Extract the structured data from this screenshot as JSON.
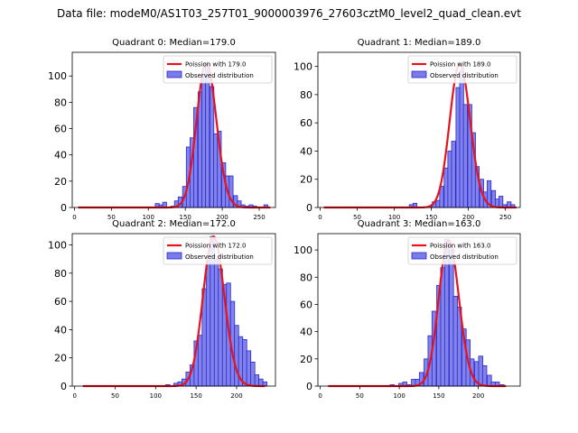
{
  "figure": {
    "suptitle": "Data file: modeM0/AS1T03_257T01_9000003976_27603cztM0_level2_quad_clean.evt"
  },
  "colors": {
    "bar_fill": "#7b7bea",
    "bar_edge": "#2a2acc",
    "poisson_line": "#e8121c"
  },
  "chart_data": [
    {
      "type": "bar",
      "title": "Quadrant 0: Median=179.0",
      "median": 179.0,
      "xlim": [
        -3,
        272
      ],
      "ylim": [
        0,
        118
      ],
      "xticks": [
        0,
        50,
        100,
        150,
        200,
        250
      ],
      "yticks": [
        0,
        20,
        40,
        60,
        80,
        100
      ],
      "legend": {
        "placement": "top-right",
        "poisson_label": "Poission with 179.0",
        "observed_label": "Observed distribution"
      },
      "bin_width": 5.3,
      "bins": [
        [
          112,
          3
        ],
        [
          117,
          2
        ],
        [
          122,
          4
        ],
        [
          133,
          1
        ],
        [
          138,
          5
        ],
        [
          143,
          8
        ],
        [
          149,
          16
        ],
        [
          154,
          46
        ],
        [
          159,
          53
        ],
        [
          164,
          76
        ],
        [
          170,
          88
        ],
        [
          175,
          100
        ],
        [
          180,
          109
        ],
        [
          186,
          92
        ],
        [
          191,
          56
        ],
        [
          196,
          58
        ],
        [
          202,
          34
        ],
        [
          207,
          24
        ],
        [
          212,
          24
        ],
        [
          218,
          9
        ],
        [
          223,
          5
        ],
        [
          228,
          2
        ],
        [
          233,
          1
        ],
        [
          239,
          2
        ],
        [
          244,
          1
        ],
        [
          259,
          2
        ]
      ],
      "poisson": {
        "mu": 179.0,
        "peak": 110,
        "x_range": [
          5,
          265
        ]
      }
    },
    {
      "type": "bar",
      "title": "Quadrant 1: Median=189.0",
      "median": 189.0,
      "xlim": [
        -3,
        270
      ],
      "ylim": [
        0,
        110
      ],
      "xticks": [
        0,
        50,
        100,
        150,
        200,
        250
      ],
      "yticks": [
        0,
        20,
        40,
        60,
        80,
        100
      ],
      "legend": {
        "placement": "top-right",
        "poisson_label": "Poission with 189.0",
        "observed_label": "Observed distribution"
      },
      "bin_width": 5.3,
      "bins": [
        [
          123,
          2
        ],
        [
          128,
          3
        ],
        [
          149,
          1
        ],
        [
          154,
          4
        ],
        [
          159,
          5
        ],
        [
          164,
          15
        ],
        [
          170,
          28
        ],
        [
          175,
          40
        ],
        [
          180,
          47
        ],
        [
          186,
          85
        ],
        [
          191,
          97
        ],
        [
          196,
          73
        ],
        [
          202,
          73
        ],
        [
          207,
          53
        ],
        [
          212,
          29
        ],
        [
          218,
          20
        ],
        [
          223,
          11
        ],
        [
          228,
          19
        ],
        [
          234,
          12
        ],
        [
          239,
          6
        ],
        [
          244,
          8
        ],
        [
          249,
          2
        ],
        [
          255,
          4
        ],
        [
          260,
          2
        ]
      ],
      "poisson": {
        "mu": 189.0,
        "peak": 102,
        "x_range": [
          5,
          265
        ]
      }
    },
    {
      "type": "bar",
      "title": "Quadrant 2: Median=172.0",
      "median": 172.0,
      "xlim": [
        -3,
        248
      ],
      "ylim": [
        0,
        108
      ],
      "xticks": [
        0,
        50,
        100,
        150,
        200
      ],
      "yticks": [
        0,
        20,
        40,
        60,
        80,
        100
      ],
      "legend": {
        "placement": "top-right",
        "poisson_label": "Poission with 172.0",
        "observed_label": "Observed distribution"
      },
      "bin_width": 5.1,
      "bins": [
        [
          115,
          1
        ],
        [
          125,
          2
        ],
        [
          130,
          3
        ],
        [
          135,
          5
        ],
        [
          140,
          10
        ],
        [
          145,
          15
        ],
        [
          150,
          32
        ],
        [
          155,
          36
        ],
        [
          160,
          69
        ],
        [
          165,
          89
        ],
        [
          170,
          106
        ],
        [
          175,
          90
        ],
        [
          180,
          83
        ],
        [
          185,
          72
        ],
        [
          190,
          73
        ],
        [
          195,
          60
        ],
        [
          200,
          43
        ],
        [
          205,
          35
        ],
        [
          210,
          33
        ],
        [
          215,
          25
        ],
        [
          220,
          17
        ],
        [
          225,
          8
        ],
        [
          230,
          5
        ],
        [
          235,
          3
        ]
      ],
      "poisson": {
        "mu": 172.0,
        "peak": 106,
        "x_range": [
          10,
          235
        ]
      }
    },
    {
      "type": "bar",
      "title": "Quadrant 3: Median=163.0",
      "median": 163.0,
      "xlim": [
        -3,
        253
      ],
      "ylim": [
        0,
        112
      ],
      "xticks": [
        0,
        50,
        100,
        150,
        200
      ],
      "yticks": [
        0,
        20,
        40,
        60,
        80,
        100
      ],
      "legend": {
        "placement": "top-right",
        "poisson_label": "Poission with 163.0",
        "observed_label": "Observed distribution"
      },
      "bin_width": 5.3,
      "bins": [
        [
          91,
          1
        ],
        [
          102,
          2
        ],
        [
          107,
          3
        ],
        [
          112,
          1
        ],
        [
          118,
          5
        ],
        [
          123,
          5
        ],
        [
          128,
          10
        ],
        [
          134,
          20
        ],
        [
          139,
          37
        ],
        [
          144,
          55
        ],
        [
          150,
          74
        ],
        [
          155,
          87
        ],
        [
          160,
          108
        ],
        [
          166,
          100
        ],
        [
          171,
          66
        ],
        [
          176,
          58
        ],
        [
          182,
          42
        ],
        [
          187,
          34
        ],
        [
          192,
          20
        ],
        [
          198,
          18
        ],
        [
          203,
          22
        ],
        [
          208,
          15
        ],
        [
          214,
          8
        ],
        [
          219,
          3
        ],
        [
          224,
          3
        ],
        [
          230,
          1
        ]
      ],
      "poisson": {
        "mu": 163.0,
        "peak": 107,
        "x_range": [
          10,
          235
        ]
      }
    }
  ]
}
